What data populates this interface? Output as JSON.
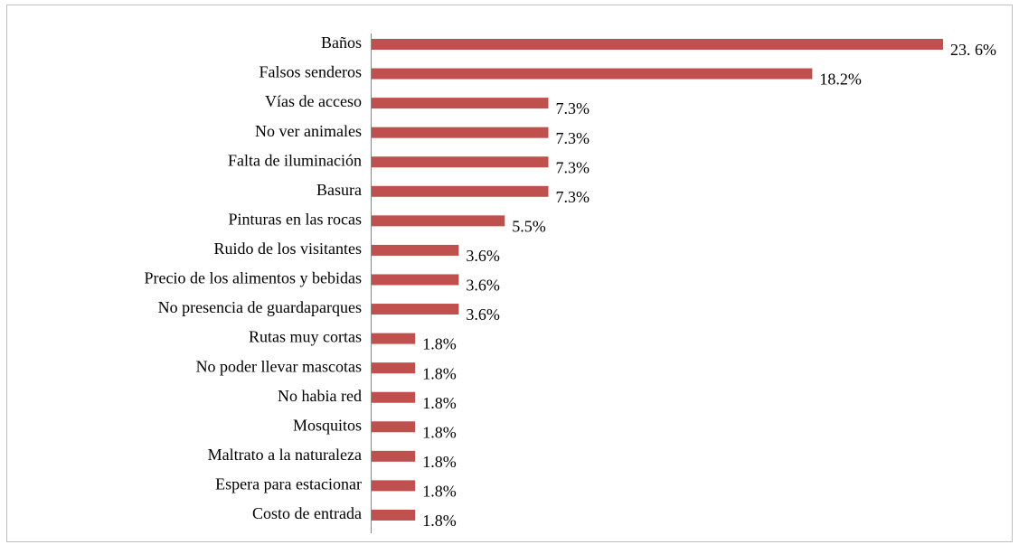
{
  "chart_data": {
    "type": "bar",
    "orientation": "horizontal",
    "color": "#c0504d",
    "categories": [
      "Baños",
      "Falsos senderos",
      "Vías de acceso",
      "No ver animales",
      "Falta de iluminación",
      "Basura",
      "Pinturas en las rocas",
      "Ruido de los visitantes",
      "Precio de los alimentos y bebidas",
      "No presencia de guardaparques",
      "Rutas muy cortas",
      "No poder llevar mascotas",
      "No habia red",
      "Mosquitos",
      "Maltrato a la naturaleza",
      "Espera para estacionar",
      "Costo de entrada"
    ],
    "values": [
      23.6,
      18.2,
      7.3,
      7.3,
      7.3,
      7.3,
      5.5,
      3.6,
      3.6,
      3.6,
      1.8,
      1.8,
      1.8,
      1.8,
      1.8,
      1.8,
      1.8
    ],
    "value_labels": [
      "23. 6%",
      "18.2%",
      "7.3%",
      "7.3%",
      "7.3%",
      "7.3%",
      "5.5%",
      "3.6%",
      "3.6%",
      "3.6%",
      "1.8%",
      "1.8%",
      "1.8%",
      "1.8%",
      "1.8%",
      "1.8%",
      "1.8%"
    ]
  }
}
